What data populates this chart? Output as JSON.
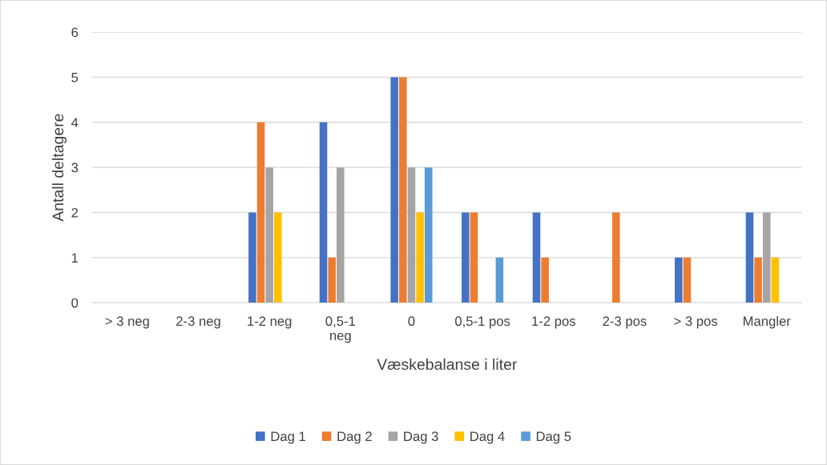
{
  "chart_data": {
    "type": "bar",
    "xlabel": "Væskebalanse i liter",
    "ylabel": "Antall deltagere",
    "categories": [
      "> 3 neg",
      "2-3 neg",
      "1-2 neg",
      "0,5-1\nneg",
      "0",
      "0,5-1 pos",
      "1-2 pos",
      "2-3 pos",
      "> 3 pos",
      "Mangler"
    ],
    "series": [
      {
        "name": "Dag 1",
        "color": "#4472c4",
        "values": [
          null,
          null,
          2,
          4,
          5,
          2,
          2,
          null,
          1,
          2
        ]
      },
      {
        "name": "Dag 2",
        "color": "#ed7d31",
        "values": [
          null,
          null,
          4,
          1,
          5,
          2,
          1,
          2,
          1,
          1
        ]
      },
      {
        "name": "Dag 3",
        "color": "#a5a5a5",
        "values": [
          null,
          null,
          3,
          3,
          3,
          null,
          null,
          null,
          null,
          2
        ]
      },
      {
        "name": "Dag 4",
        "color": "#ffc000",
        "values": [
          null,
          null,
          2,
          null,
          2,
          null,
          null,
          null,
          null,
          1
        ]
      },
      {
        "name": "Dag 5",
        "color": "#5b9bd5",
        "values": [
          null,
          null,
          null,
          null,
          3,
          1,
          null,
          null,
          null,
          null
        ]
      }
    ],
    "ylim": [
      0,
      6
    ],
    "yticks": [
      0,
      1,
      2,
      3,
      4,
      5,
      6
    ],
    "grid": "y",
    "legend": "bottom"
  }
}
